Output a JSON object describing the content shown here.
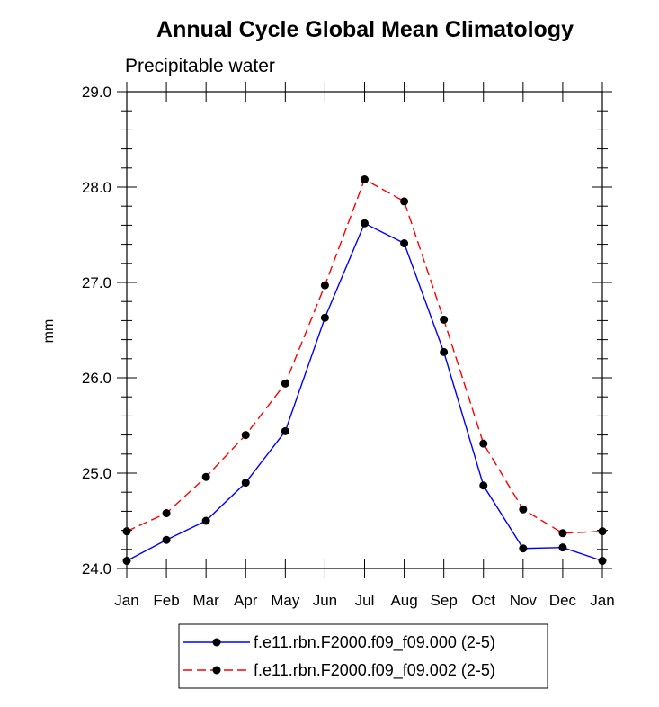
{
  "chart_data": {
    "type": "line",
    "title": "Annual Cycle Global Mean Climatology",
    "subtitle": "Precipitable water",
    "xlabel": "",
    "ylabel": "mm",
    "categories": [
      "Jan",
      "Feb",
      "Mar",
      "Apr",
      "May",
      "Jun",
      "Jul",
      "Aug",
      "Sep",
      "Oct",
      "Nov",
      "Dec",
      "Jan"
    ],
    "ylim": [
      24.0,
      29.0
    ],
    "yticks": [
      24.0,
      25.0,
      26.0,
      27.0,
      28.0,
      29.0
    ],
    "ytick_labels": [
      "24.0",
      "25.0",
      "26.0",
      "27.0",
      "28.0",
      "29.0"
    ],
    "grid": false,
    "legend_position": "bottom-center",
    "series": [
      {
        "name": "f.e11.rbn.F2000.f09_f09.000 (2-5)",
        "color": "#0000ff",
        "dash": "solid",
        "values": [
          24.08,
          24.3,
          24.5,
          24.9,
          25.44,
          26.63,
          27.62,
          27.41,
          26.27,
          24.87,
          24.21,
          24.22,
          24.08
        ]
      },
      {
        "name": "f.e11.rbn.F2000.f09_f09.002 (2-5)",
        "color": "#ff0000",
        "dash": "dashed",
        "values": [
          24.39,
          24.58,
          24.96,
          25.4,
          25.94,
          26.97,
          28.08,
          27.85,
          26.61,
          25.31,
          24.62,
          24.37,
          24.39
        ]
      }
    ]
  }
}
